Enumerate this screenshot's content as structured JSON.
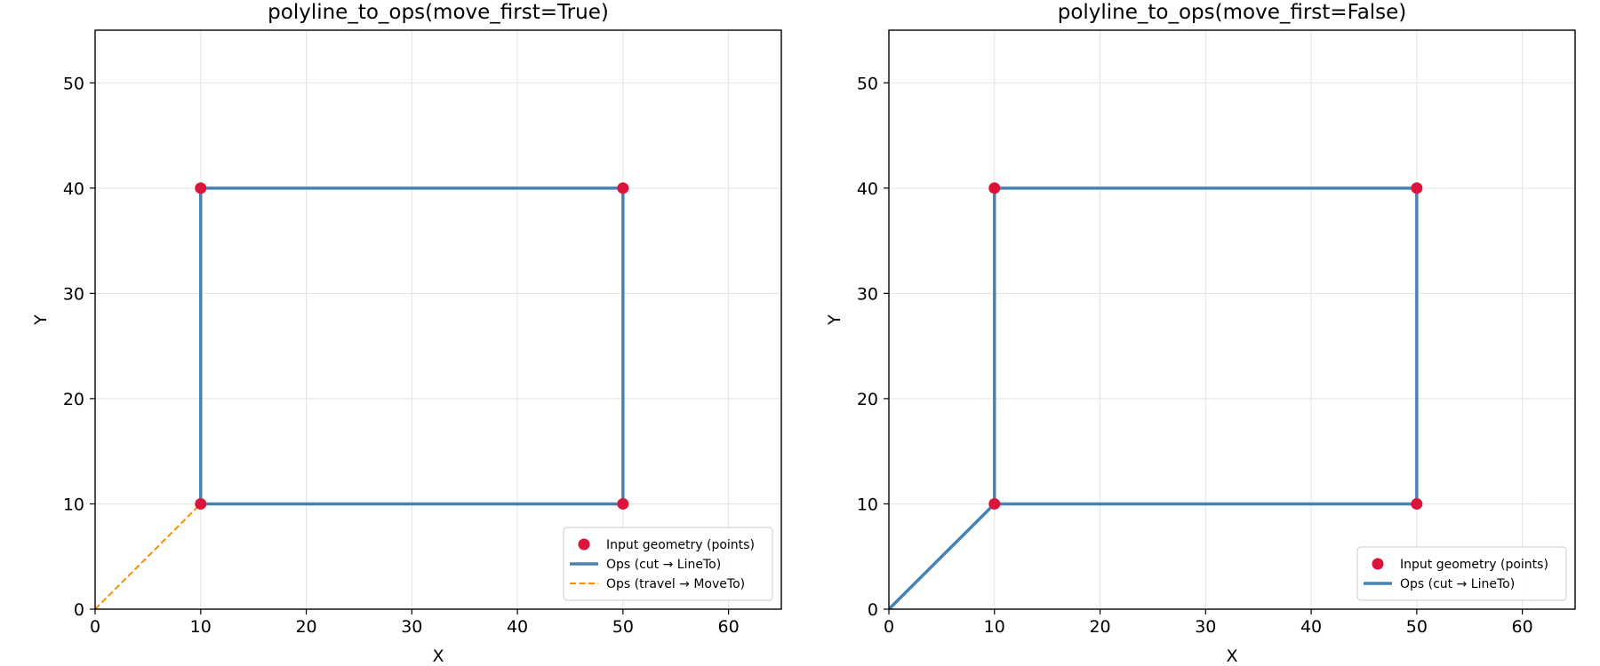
{
  "chart_data": [
    {
      "type": "line",
      "title": "polyline_to_ops(move_first=True)",
      "xlabel": "X",
      "ylabel": "Y",
      "xlim": [
        0,
        65
      ],
      "ylim": [
        0,
        55
      ],
      "xticks": [
        0,
        10,
        20,
        30,
        40,
        50,
        60
      ],
      "yticks": [
        0,
        10,
        20,
        30,
        40,
        50
      ],
      "grid": true,
      "legend_position": "lower-right",
      "series": [
        {
          "name": "Input geometry (points)",
          "kind": "scatter",
          "color": "#dc143c",
          "points": [
            [
              10,
              10
            ],
            [
              50,
              10
            ],
            [
              50,
              40
            ],
            [
              10,
              40
            ]
          ]
        },
        {
          "name": "Ops (cut → LineTo)",
          "kind": "line",
          "color": "#4682b4",
          "segments": [
            [
              [
                10,
                10
              ],
              [
                50,
                10
              ]
            ],
            [
              [
                50,
                10
              ],
              [
                50,
                40
              ]
            ],
            [
              [
                50,
                40
              ],
              [
                10,
                40
              ]
            ],
            [
              [
                10,
                40
              ],
              [
                10,
                10
              ]
            ]
          ]
        },
        {
          "name": "Ops (travel → MoveTo)",
          "kind": "dashed-line",
          "color": "#ff8c00",
          "segments": [
            [
              [
                0,
                0
              ],
              [
                10,
                10
              ]
            ]
          ]
        }
      ]
    },
    {
      "type": "line",
      "title": "polyline_to_ops(move_first=False)",
      "xlabel": "X",
      "ylabel": "Y",
      "xlim": [
        0,
        65
      ],
      "ylim": [
        0,
        55
      ],
      "xticks": [
        0,
        10,
        20,
        30,
        40,
        50,
        60
      ],
      "yticks": [
        0,
        10,
        20,
        30,
        40,
        50
      ],
      "grid": true,
      "legend_position": "lower-right",
      "series": [
        {
          "name": "Input geometry (points)",
          "kind": "scatter",
          "color": "#dc143c",
          "points": [
            [
              10,
              10
            ],
            [
              50,
              10
            ],
            [
              50,
              40
            ],
            [
              10,
              40
            ]
          ]
        },
        {
          "name": "Ops (cut → LineTo)",
          "kind": "line",
          "color": "#4682b4",
          "segments": [
            [
              [
                0,
                0
              ],
              [
                10,
                10
              ]
            ],
            [
              [
                10,
                10
              ],
              [
                50,
                10
              ]
            ],
            [
              [
                50,
                10
              ],
              [
                50,
                40
              ]
            ],
            [
              [
                50,
                40
              ],
              [
                10,
                40
              ]
            ],
            [
              [
                10,
                40
              ],
              [
                10,
                10
              ]
            ]
          ]
        }
      ]
    }
  ]
}
